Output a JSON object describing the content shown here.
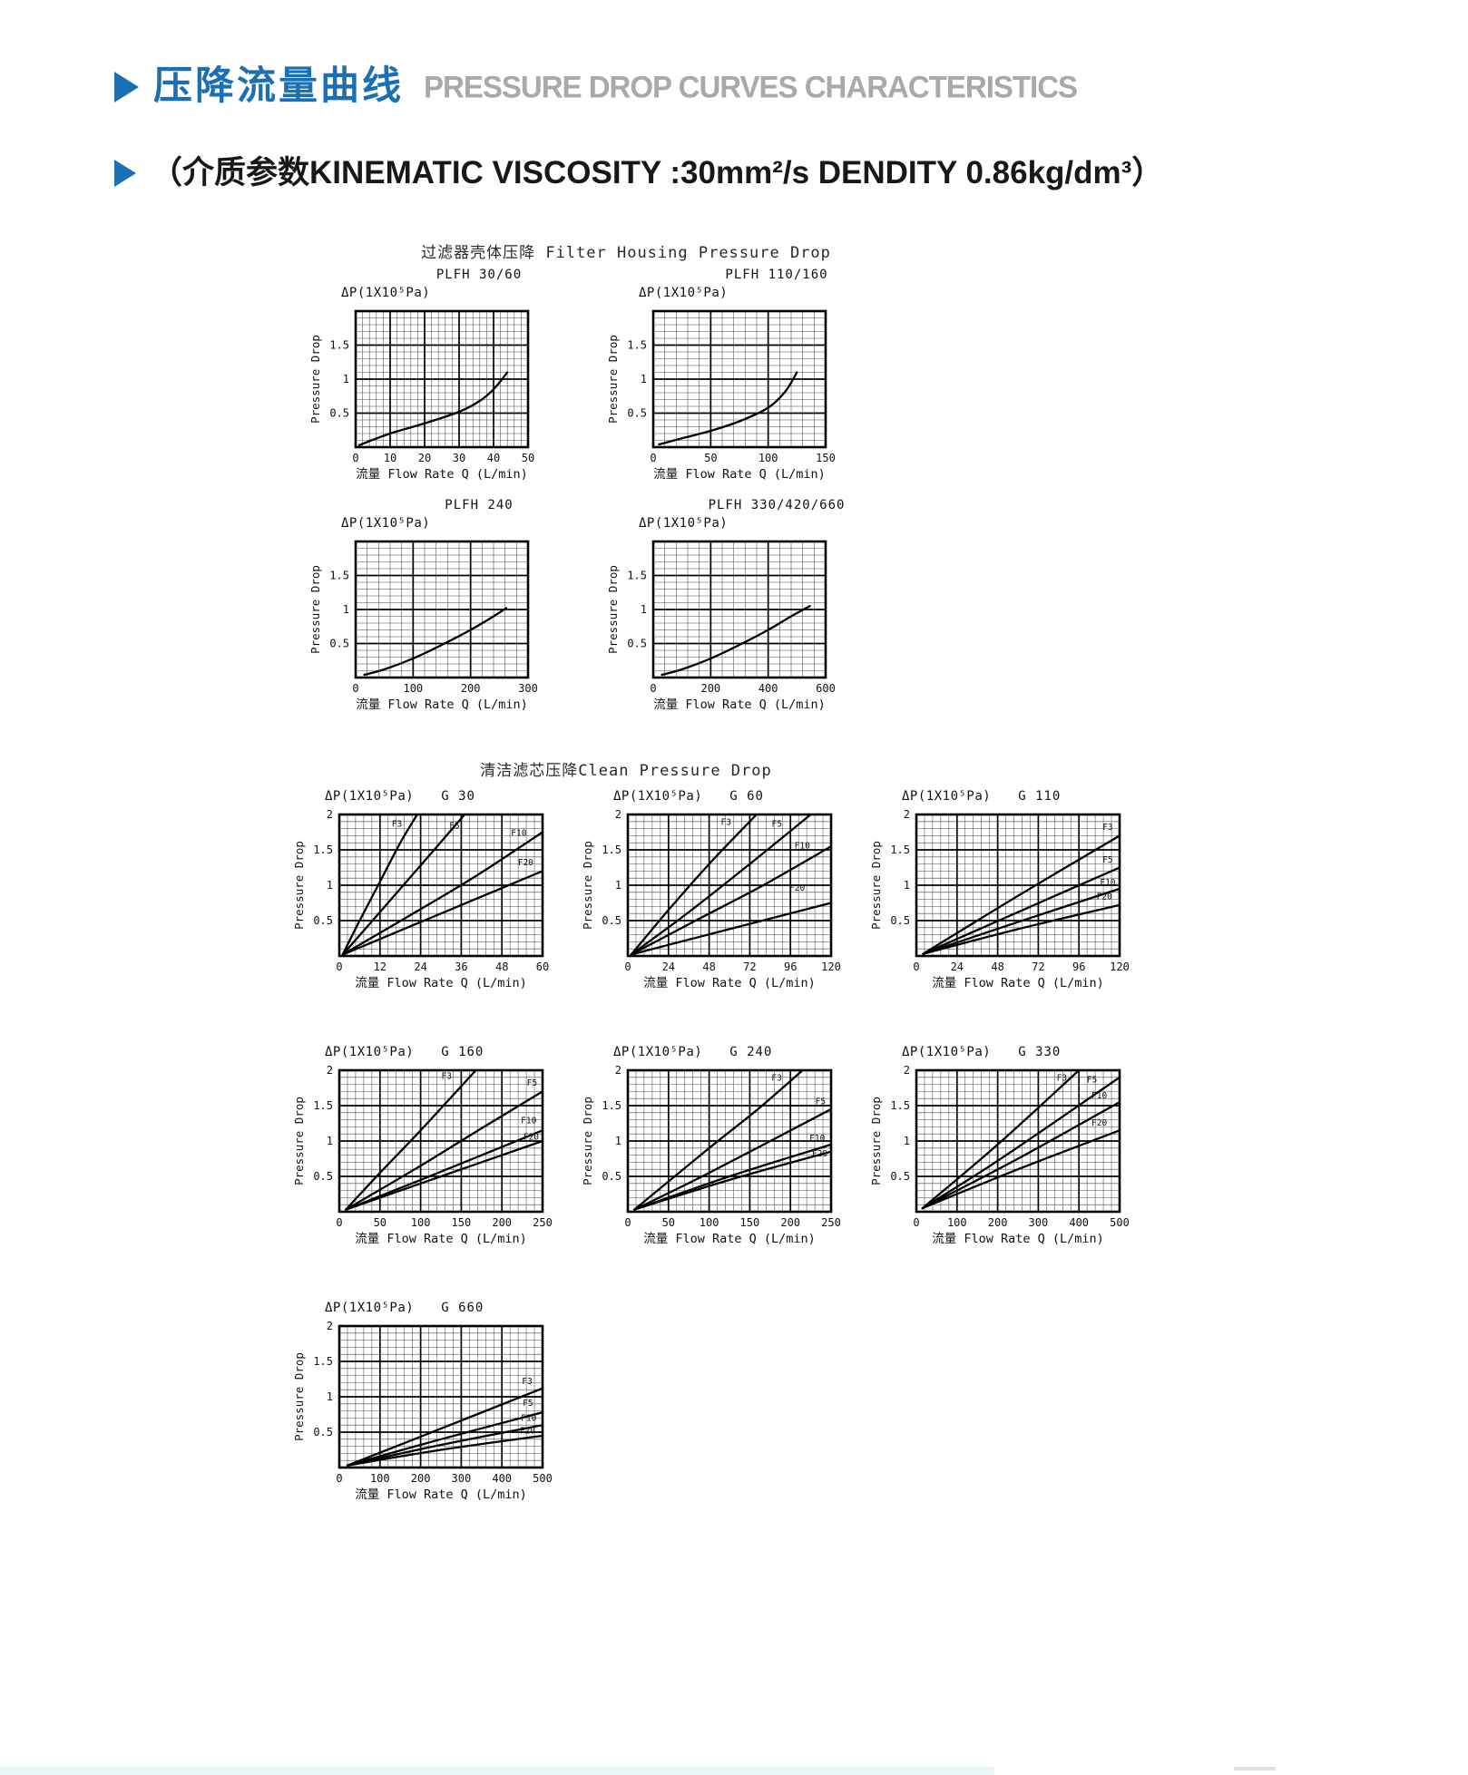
{
  "page": {
    "accent_color": "#1b6fb5",
    "header": {
      "title_cn": "压降流量曲线",
      "title_en": "PRESSURE DROP CURVES CHARACTERISTICS",
      "title_en_color": "#a7a9ac",
      "subtitle": "（介质参数KINEMATIC VISCOSITY :30mm²/s DENDITY 0.86kg/dm³）"
    },
    "sections": [
      {
        "id": "housing",
        "title": "过滤器壳体压降 Filter Housing Pressure Drop"
      },
      {
        "id": "clean",
        "title": "清洁滤芯压降Clean Pressure Drop"
      }
    ]
  },
  "chart_data": [
    {
      "id": "plfh-30-60",
      "section": "housing",
      "type": "line",
      "title": "PLFH 30/60",
      "y_unit_label": "ΔP(1X10⁵Pa)",
      "ylabel": "Pressure Drop",
      "xlabel": "流量 Flow Rate  Q (L/min)",
      "xlim": [
        0,
        50
      ],
      "ylim": [
        0,
        2
      ],
      "xticks": [
        0,
        10,
        20,
        30,
        40,
        50
      ],
      "yticks": [
        0.5,
        1,
        1.5
      ],
      "series": [
        {
          "name": "",
          "points": [
            [
              1,
              0.03
            ],
            [
              10,
              0.2
            ],
            [
              20,
              0.35
            ],
            [
              30,
              0.52
            ],
            [
              36,
              0.68
            ],
            [
              40,
              0.85
            ],
            [
              44,
              1.1
            ]
          ]
        }
      ]
    },
    {
      "id": "plfh-110-160",
      "section": "housing",
      "type": "line",
      "title": "PLFH 110/160",
      "y_unit_label": "ΔP(1X10⁵Pa)",
      "ylabel": "Pressure Drop",
      "xlabel": "流量 Flow Rate  Q (L/min)",
      "xlim": [
        0,
        150
      ],
      "ylim": [
        0,
        2
      ],
      "xticks": [
        0,
        50,
        100,
        150
      ],
      "yticks": [
        0.5,
        1,
        1.5
      ],
      "series": [
        {
          "name": "",
          "points": [
            [
              5,
              0.04
            ],
            [
              25,
              0.13
            ],
            [
              50,
              0.24
            ],
            [
              75,
              0.38
            ],
            [
              100,
              0.58
            ],
            [
              115,
              0.82
            ],
            [
              125,
              1.1
            ]
          ]
        }
      ]
    },
    {
      "id": "plfh-240",
      "section": "housing",
      "type": "line",
      "title": "PLFH 240",
      "y_unit_label": "ΔP(1X10⁵Pa)",
      "ylabel": "Pressure Drop",
      "xlabel": "流量 Flow Rate  Q (L/min)",
      "xlim": [
        0,
        300
      ],
      "ylim": [
        0,
        2
      ],
      "xticks": [
        0,
        100,
        200,
        300
      ],
      "yticks": [
        0.5,
        1,
        1.5
      ],
      "series": [
        {
          "name": "",
          "points": [
            [
              15,
              0.04
            ],
            [
              50,
              0.12
            ],
            [
              100,
              0.28
            ],
            [
              150,
              0.48
            ],
            [
              200,
              0.7
            ],
            [
              240,
              0.9
            ],
            [
              262,
              1.02
            ]
          ]
        }
      ]
    },
    {
      "id": "plfh-330-420-660",
      "section": "housing",
      "type": "line",
      "title": "PLFH 330/420/660",
      "y_unit_label": "ΔP(1X10⁵Pa)",
      "ylabel": "Pressure Drop",
      "xlabel": "流量 Flow Rate  Q (L/min)",
      "xlim": [
        0,
        600
      ],
      "ylim": [
        0,
        2
      ],
      "xticks": [
        0,
        200,
        400,
        600
      ],
      "yticks": [
        0.5,
        1,
        1.5
      ],
      "series": [
        {
          "name": "",
          "points": [
            [
              30,
              0.04
            ],
            [
              100,
              0.12
            ],
            [
              200,
              0.28
            ],
            [
              300,
              0.48
            ],
            [
              400,
              0.7
            ],
            [
              480,
              0.9
            ],
            [
              545,
              1.05
            ]
          ]
        }
      ]
    },
    {
      "id": "g-30",
      "section": "clean",
      "type": "line",
      "title": "G 30",
      "y_unit_label": "ΔP(1X10⁵Pa)",
      "ylabel": "Pressure Drop",
      "xlabel": "流量 Flow Rate  Q (L/min)",
      "xlim": [
        0,
        60
      ],
      "ylim": [
        0,
        2
      ],
      "xticks": [
        0,
        12,
        24,
        36,
        48,
        60
      ],
      "yticks": [
        0.5,
        1,
        1.5,
        2
      ],
      "series": [
        {
          "name": "F3",
          "label_xy": [
            17,
            1.83
          ],
          "points": [
            [
              1,
              0.02
            ],
            [
              6,
              0.5
            ],
            [
              12,
              1.05
            ],
            [
              18,
              1.6
            ],
            [
              23,
              2.0
            ]
          ]
        },
        {
          "name": "F5",
          "label_xy": [
            34,
            1.8
          ],
          "points": [
            [
              1,
              0.02
            ],
            [
              12,
              0.62
            ],
            [
              24,
              1.28
            ],
            [
              37,
              2.0
            ]
          ]
        },
        {
          "name": "F10",
          "label_xy": [
            53,
            1.7
          ],
          "points": [
            [
              1,
              0.02
            ],
            [
              20,
              0.55
            ],
            [
              40,
              1.12
            ],
            [
              60,
              1.75
            ]
          ]
        },
        {
          "name": "F20",
          "label_xy": [
            55,
            1.28
          ],
          "points": [
            [
              1,
              0.02
            ],
            [
              20,
              0.4
            ],
            [
              40,
              0.8
            ],
            [
              60,
              1.2
            ]
          ]
        }
      ]
    },
    {
      "id": "g-60",
      "section": "clean",
      "type": "line",
      "title": "G 60",
      "y_unit_label": "ΔP(1X10⁵Pa)",
      "ylabel": "Pressure Drop",
      "xlabel": "流量 Flow Rate  Q (L/min)",
      "xlim": [
        0,
        120
      ],
      "ylim": [
        0,
        2
      ],
      "xticks": [
        0,
        24,
        48,
        72,
        96,
        120
      ],
      "yticks": [
        0.5,
        1,
        1.5,
        2
      ],
      "series": [
        {
          "name": "F3",
          "label_xy": [
            58,
            1.85
          ],
          "points": [
            [
              2,
              0.02
            ],
            [
              24,
              0.65
            ],
            [
              48,
              1.3
            ],
            [
              76,
              2.0
            ]
          ]
        },
        {
          "name": "F5",
          "label_xy": [
            88,
            1.83
          ],
          "points": [
            [
              2,
              0.02
            ],
            [
              36,
              0.62
            ],
            [
              72,
              1.3
            ],
            [
              108,
              2.0
            ]
          ]
        },
        {
          "name": "F10",
          "label_xy": [
            103,
            1.52
          ],
          "points": [
            [
              2,
              0.02
            ],
            [
              40,
              0.5
            ],
            [
              80,
              1.0
            ],
            [
              120,
              1.55
            ]
          ]
        },
        {
          "name": "F20",
          "label_xy": [
            100,
            0.92
          ],
          "points": [
            [
              2,
              0.02
            ],
            [
              60,
              0.38
            ],
            [
              120,
              0.75
            ]
          ]
        }
      ]
    },
    {
      "id": "g-110",
      "section": "clean",
      "type": "line",
      "title": "G 110",
      "y_unit_label": "ΔP(1X10⁵Pa)",
      "ylabel": "Pressure Drop",
      "xlabel": "流量 Flow Rate  Q (L/min)",
      "xlim": [
        0,
        120
      ],
      "ylim": [
        0,
        2
      ],
      "xticks": [
        0,
        24,
        48,
        72,
        96,
        120
      ],
      "yticks": [
        0.5,
        1,
        1.5,
        2
      ],
      "series": [
        {
          "name": "F3",
          "label_xy": [
            113,
            1.78
          ],
          "points": [
            [
              4,
              0.03
            ],
            [
              60,
              0.85
            ],
            [
              120,
              1.7
            ]
          ]
        },
        {
          "name": "F5",
          "label_xy": [
            113,
            1.32
          ],
          "points": [
            [
              4,
              0.03
            ],
            [
              60,
              0.62
            ],
            [
              120,
              1.25
            ]
          ]
        },
        {
          "name": "F10",
          "label_xy": [
            113,
            1.0
          ],
          "points": [
            [
              4,
              0.03
            ],
            [
              60,
              0.48
            ],
            [
              120,
              0.95
            ]
          ]
        },
        {
          "name": "F20",
          "label_xy": [
            111,
            0.8
          ],
          "points": [
            [
              4,
              0.03
            ],
            [
              60,
              0.38
            ],
            [
              120,
              0.72
            ]
          ]
        }
      ]
    },
    {
      "id": "g-160",
      "section": "clean",
      "type": "line",
      "title": "G 160",
      "y_unit_label": "ΔP(1X10⁵Pa)",
      "ylabel": "Pressure Drop",
      "xlabel": "流量 Flow Rate  Q (L/min)",
      "xlim": [
        0,
        250
      ],
      "ylim": [
        0,
        2
      ],
      "xticks": [
        0,
        50,
        100,
        150,
        200,
        250
      ],
      "yticks": [
        0.5,
        1,
        1.5,
        2
      ],
      "series": [
        {
          "name": "F3",
          "label_xy": [
            132,
            1.88
          ],
          "points": [
            [
              8,
              0.03
            ],
            [
              50,
              0.55
            ],
            [
              100,
              1.15
            ],
            [
              168,
              2.0
            ]
          ]
        },
        {
          "name": "F5",
          "label_xy": [
            237,
            1.78
          ],
          "points": [
            [
              8,
              0.03
            ],
            [
              100,
              0.65
            ],
            [
              175,
              1.18
            ],
            [
              250,
              1.7
            ]
          ]
        },
        {
          "name": "F10",
          "label_xy": [
            233,
            1.25
          ],
          "points": [
            [
              8,
              0.03
            ],
            [
              100,
              0.45
            ],
            [
              250,
              1.15
            ]
          ]
        },
        {
          "name": "F20",
          "label_xy": [
            236,
            1.02
          ],
          "points": [
            [
              8,
              0.03
            ],
            [
              100,
              0.4
            ],
            [
              250,
              1.0
            ]
          ]
        }
      ]
    },
    {
      "id": "g-240",
      "section": "clean",
      "type": "line",
      "title": "G 240",
      "y_unit_label": "ΔP(1X10⁵Pa)",
      "ylabel": "Pressure Drop",
      "xlabel": "流量 Flow Rate  Q (L/min)",
      "xlim": [
        0,
        250
      ],
      "ylim": [
        0,
        2
      ],
      "xticks": [
        0,
        50,
        100,
        150,
        200,
        250
      ],
      "yticks": [
        0.5,
        1,
        1.5,
        2
      ],
      "series": [
        {
          "name": "F3",
          "label_xy": [
            183,
            1.85
          ],
          "points": [
            [
              8,
              0.03
            ],
            [
              100,
              0.9
            ],
            [
              160,
              1.45
            ],
            [
              215,
              2.0
            ]
          ]
        },
        {
          "name": "F5",
          "label_xy": [
            237,
            1.52
          ],
          "points": [
            [
              8,
              0.03
            ],
            [
              100,
              0.55
            ],
            [
              250,
              1.45
            ]
          ]
        },
        {
          "name": "F10",
          "label_xy": [
            233,
            1.0
          ],
          "points": [
            [
              8,
              0.03
            ],
            [
              125,
              0.5
            ],
            [
              250,
              0.95
            ]
          ]
        },
        {
          "name": "F20",
          "label_xy": [
            236,
            0.78
          ],
          "points": [
            [
              8,
              0.03
            ],
            [
              125,
              0.45
            ],
            [
              250,
              0.85
            ]
          ]
        }
      ]
    },
    {
      "id": "g-330",
      "section": "clean",
      "type": "line",
      "title": "G 330",
      "y_unit_label": "ΔP(1X10⁵Pa)",
      "ylabel": "Pressure Drop",
      "xlabel": "流量 Flow Rate  Q (L/min)",
      "xlim": [
        0,
        500
      ],
      "ylim": [
        0,
        2
      ],
      "xticks": [
        0,
        100,
        200,
        300,
        400,
        500
      ],
      "yticks": [
        0.5,
        1,
        1.5,
        2
      ],
      "series": [
        {
          "name": "F3",
          "label_xy": [
            358,
            1.85
          ],
          "points": [
            [
              15,
              0.05
            ],
            [
              200,
              0.95
            ],
            [
              400,
              2.0
            ]
          ]
        },
        {
          "name": "F5",
          "label_xy": [
            432,
            1.83
          ],
          "points": [
            [
              15,
              0.05
            ],
            [
              200,
              0.72
            ],
            [
              500,
              1.9
            ]
          ]
        },
        {
          "name": "F10",
          "label_xy": [
            450,
            1.6
          ],
          "points": [
            [
              15,
              0.05
            ],
            [
              250,
              0.75
            ],
            [
              500,
              1.55
            ]
          ]
        },
        {
          "name": "F20",
          "label_xy": [
            450,
            1.22
          ],
          "points": [
            [
              15,
              0.05
            ],
            [
              250,
              0.6
            ],
            [
              500,
              1.15
            ]
          ]
        }
      ]
    },
    {
      "id": "g-660",
      "section": "clean",
      "type": "line",
      "title": "G 660",
      "y_unit_label": "ΔP(1X10⁵Pa)",
      "ylabel": "Pressure Drop",
      "xlabel": "流量 Flow Rate  Q (L/min)",
      "xlim": [
        0,
        500
      ],
      "ylim": [
        0,
        2
      ],
      "xticks": [
        0,
        100,
        200,
        300,
        400,
        500
      ],
      "yticks": [
        0.5,
        1,
        1.5,
        2
      ],
      "series": [
        {
          "name": "F3",
          "label_xy": [
            462,
            1.18
          ],
          "points": [
            [
              20,
              0.03
            ],
            [
              250,
              0.55
            ],
            [
              500,
              1.12
            ]
          ]
        },
        {
          "name": "F5",
          "label_xy": [
            464,
            0.87
          ],
          "points": [
            [
              20,
              0.03
            ],
            [
              250,
              0.4
            ],
            [
              500,
              0.78
            ]
          ]
        },
        {
          "name": "F10",
          "label_xy": [
            466,
            0.66
          ],
          "points": [
            [
              20,
              0.03
            ],
            [
              250,
              0.32
            ],
            [
              500,
              0.6
            ]
          ]
        },
        {
          "name": "F20",
          "label_xy": [
            463,
            0.48
          ],
          "points": [
            [
              20,
              0.03
            ],
            [
              250,
              0.25
            ],
            [
              500,
              0.45
            ]
          ]
        }
      ]
    }
  ]
}
